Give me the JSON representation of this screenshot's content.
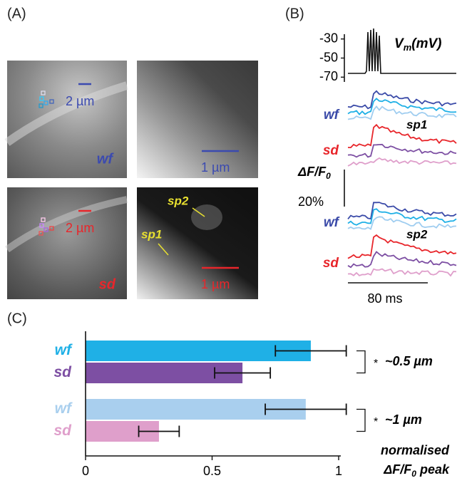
{
  "panel_a": {
    "label": "(A)",
    "images": [
      {
        "scale": "2 µm",
        "condition": "wf"
      },
      {
        "scale": "1 µm"
      },
      {
        "scale": "2 µm",
        "condition": "sd"
      },
      {
        "scale": "1 µm",
        "spines": [
          "sp2",
          "sp1"
        ]
      }
    ]
  },
  "panel_b": {
    "label": "(B)",
    "vm_label": {
      "main": "V",
      "sub": "m",
      "unit": "(mV)"
    },
    "vm_ylim": [
      -75,
      -25
    ],
    "vm_yticks": [
      -30,
      -50,
      -70
    ],
    "df_label": {
      "main": "ΔF/F",
      "sub": "0"
    },
    "scale_label": "20%",
    "time_label": "80 ms",
    "groups": [
      {
        "spine": "sp1",
        "conditions": [
          "wf",
          "sd"
        ]
      },
      {
        "spine": "sp2",
        "conditions": [
          "wf",
          "sd"
        ]
      }
    ]
  },
  "chart_data": {
    "type": "bar",
    "orientation": "horizontal",
    "label": "(C)",
    "categories": [
      "wf",
      "sd",
      "wf",
      "sd"
    ],
    "values": [
      0.89,
      0.62,
      0.87,
      0.29
    ],
    "errors": [
      0.14,
      0.11,
      0.16,
      0.08
    ],
    "colors": [
      "#1fb0e6",
      "#7d4fa3",
      "#a9cfee",
      "#df9fcb"
    ],
    "xlim": [
      0,
      1
    ],
    "xticks": [
      0,
      0.5,
      1
    ],
    "xlabel": "normalised",
    "xlabel2": {
      "main": "ΔF/F",
      "sub": "0",
      "tail": " peak"
    },
    "comparisons": [
      {
        "mark": "*",
        "label": "~0.5 µm"
      },
      {
        "mark": "*",
        "label": "~1 µm"
      }
    ]
  }
}
